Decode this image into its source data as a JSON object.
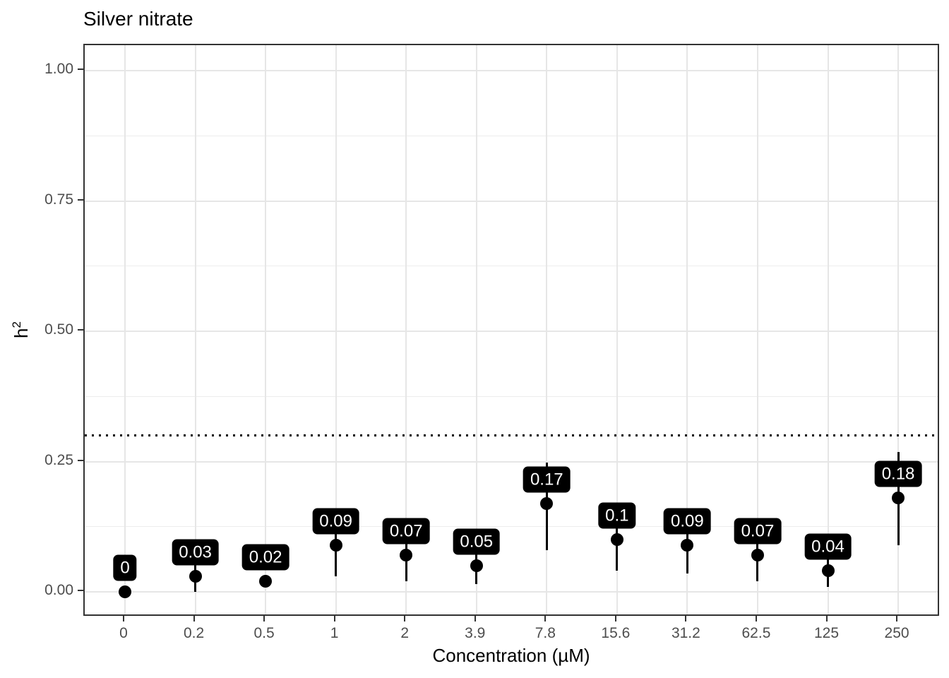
{
  "page": {
    "title": "Silver nitrate"
  },
  "chart_data": {
    "type": "scatter",
    "title": "Silver nitrate",
    "xlabel": "Concentration (µM)",
    "ylabel": "h^2",
    "ylabel_base": "h",
    "ylabel_exponent": "2",
    "categories": [
      "0",
      "0.2",
      "0.5",
      "1",
      "2",
      "3.9",
      "7.8",
      "15.6",
      "31.2",
      "62.5",
      "125",
      "250"
    ],
    "values": [
      0,
      0.03,
      0.02,
      0.09,
      0.07,
      0.05,
      0.17,
      0.1,
      0.09,
      0.07,
      0.04,
      0.18
    ],
    "point_labels": [
      "0",
      "0.03",
      "0.02",
      "0.09",
      "0.07",
      "0.05",
      "0.17",
      "0.1",
      "0.09",
      "0.07",
      "0.04",
      "0.18"
    ],
    "error_low": [
      0,
      0,
      0.02,
      0.03,
      0.02,
      0.015,
      0.08,
      0.04,
      0.035,
      0.02,
      0.01,
      0.09
    ],
    "error_high": [
      0,
      0.06,
      0.02,
      0.145,
      0.12,
      0.1,
      0.248,
      0.16,
      0.15,
      0.12,
      0.09,
      0.268
    ],
    "reference_line_y": 0.3,
    "ylim": [
      0,
      1
    ],
    "y_major_ticks": [
      0,
      0.25,
      0.5,
      0.75,
      1
    ],
    "y_tick_labels": [
      "0.00",
      "0.25",
      "0.50",
      "0.75",
      "1.00"
    ],
    "y_minor_ticks": [
      0.125,
      0.375,
      0.625,
      0.875
    ],
    "grid": "horizontal major+minor, vertical major at each category; light gray on white panel",
    "legend": "none",
    "colors": {
      "point": "#000000",
      "error_bar": "#000000",
      "label_bg": "#000000",
      "label_text": "#ffffff",
      "grid_major": "#e6e6e6",
      "grid_minor": "#ededed",
      "panel_border": "#333333",
      "tick_text": "#4d4d4d",
      "title_text": "#000000",
      "reference_line": "#000000"
    }
  }
}
